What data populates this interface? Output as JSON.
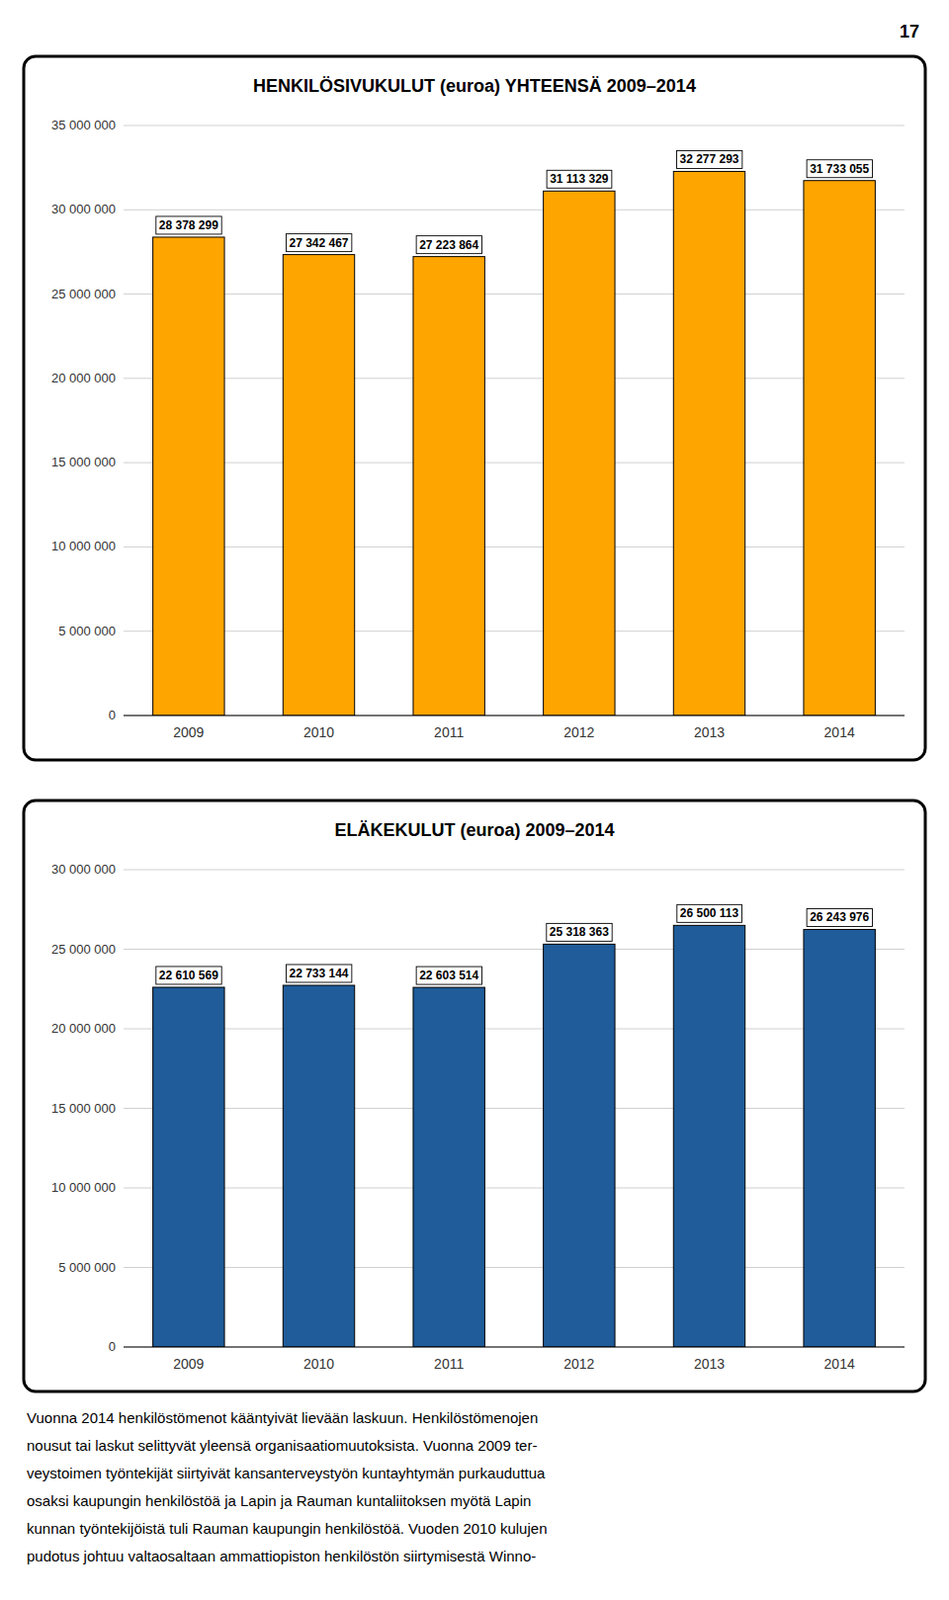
{
  "page_number": "17",
  "text_lines": [
    "Vuonna 2014 henkilöstömenot kääntyivät lievään laskuun. Henkilöstömenojen",
    "nousut tai laskut selittyvät yleensä organisaatiomuutoksista. Vuonna 2009 ter-",
    "veystoimen työntekijät siirtyivät kansanterveystyön kuntayhtymän purkauduttua",
    "osaksi kaupungin henkilöstöä ja Lapin ja Rauman kuntaliitoksen myötä Lapin",
    "kunnan työntekijöistä tuli Rauman kaupungin henkilöstöä. Vuoden 2010 kulujen",
    "pudotus johtuu valtaosaltaan ammattiopiston henkilöstön siirtymisestä Winno-"
  ],
  "chart_data": [
    {
      "type": "bar",
      "title": "HENKILÖSIVUKULUT (euroa) YHTEENSÄ 2009–2014",
      "categories": [
        "2009",
        "2010",
        "2011",
        "2012",
        "2013",
        "2014"
      ],
      "values": [
        28378299,
        27342467,
        27223864,
        31113329,
        32277293,
        31733055
      ],
      "value_labels": [
        "28 378 299",
        "27 342 467",
        "27 223 864",
        "31 113 329",
        "32 277 293",
        "31 733 055"
      ],
      "data_labels": true,
      "color": "#FFA500",
      "ylim": [
        0,
        35000000
      ],
      "yticks": [
        0,
        {
          "value": 5000000,
          "label": "5 000 000"
        },
        {
          "value": 10000000,
          "label": "10 000 000"
        },
        {
          "value": 15000000,
          "label": "15 000 000"
        },
        {
          "value": 20000000,
          "label": "20 000 000"
        },
        {
          "value": 25000000,
          "label": "25 000 000"
        },
        {
          "value": 30000000,
          "label": "30 000 000"
        },
        {
          "value": 35000000,
          "label": "35 000 000"
        }
      ],
      "grid": true
    },
    {
      "type": "bar",
      "title": "ELÄKEKULUT (euroa) 2009–2014",
      "categories": [
        "2009",
        "2010",
        "2011",
        "2012",
        "2013",
        "2014"
      ],
      "values": [
        22610569,
        22733144,
        22603514,
        25318363,
        26500113,
        26243976
      ],
      "value_labels": [
        "22 610 569",
        "22 733 144",
        "22 603 514",
        "25 318 363",
        "26 500 113",
        "26 243 976"
      ],
      "data_labels": true,
      "color": "#1F5C99",
      "ylim": [
        0,
        30000000
      ],
      "yticks": [
        0,
        {
          "value": 5000000,
          "label": "5 000 000"
        },
        {
          "value": 10000000,
          "label": "10 000 000"
        },
        {
          "value": 15000000,
          "label": "15 000 000"
        },
        {
          "value": 20000000,
          "label": "20 000 000"
        },
        {
          "value": 25000000,
          "label": "25 000 000"
        },
        {
          "value": 30000000,
          "label": "30 000 000"
        }
      ],
      "grid": true
    }
  ]
}
